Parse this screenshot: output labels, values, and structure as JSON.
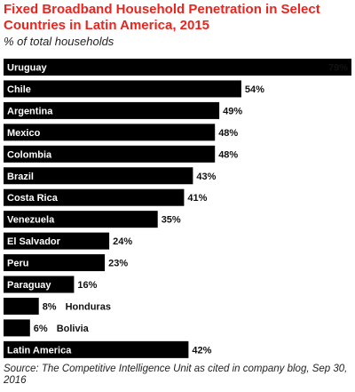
{
  "chart_data": {
    "type": "bar",
    "orientation": "horizontal",
    "title": "Fixed Broadband Household Penetration in Select Countries in Latin America, 2015",
    "subtitle": "% of total households",
    "source": "Source: The Competitive Intelligence Unit as cited in company blog, Sep 30, 2016",
    "categories": [
      "Uruguay",
      "Chile",
      "Argentina",
      "Mexico",
      "Colombia",
      "Brazil",
      "Costa Rica",
      "Venezuela",
      "El Salvador",
      "Peru",
      "Paraguay",
      "Honduras",
      "Bolivia",
      "Latin America"
    ],
    "values": [
      79,
      54,
      49,
      48,
      48,
      43,
      41,
      35,
      24,
      23,
      16,
      8,
      6,
      42
    ],
    "value_labels": [
      "79%",
      "54%",
      "49%",
      "48%",
      "48%",
      "43%",
      "41%",
      "35%",
      "24%",
      "23%",
      "16%",
      "8%",
      "6%",
      "42%"
    ],
    "xlim": [
      0,
      79
    ],
    "bar_color": "#000000",
    "label_color_inside": "#ffffff",
    "grid": false,
    "legend": "none"
  }
}
